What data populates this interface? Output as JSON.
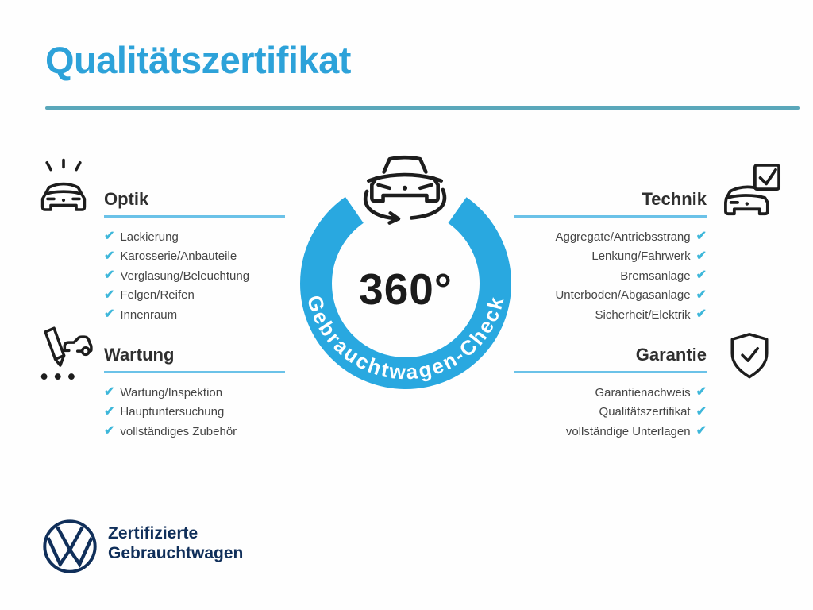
{
  "page": {
    "title": "Qualitätszertifikat"
  },
  "center": {
    "degrees": "360°",
    "ring_text": "Gebrauchtwagen-Check",
    "icon": "rotating-car-icon"
  },
  "sections": {
    "optik": {
      "label": "Optik",
      "icon": "shining-car-icon",
      "items": [
        "Lackierung",
        "Karosserie/Anbauteile",
        "Verglasung/Beleuchtung",
        "Felgen/Reifen",
        "Innenraum"
      ]
    },
    "wartung": {
      "label": "Wartung",
      "icon": "service-note-car-icon",
      "items": [
        "Wartung/Inspektion",
        "Hauptuntersuchung",
        "vollständiges Zubehör"
      ]
    },
    "technik": {
      "label": "Technik",
      "icon": "car-checkbox-icon",
      "items": [
        "Aggregate/Antriebsstrang",
        "Lenkung/Fahrwerk",
        "Bremsanlage",
        "Unterboden/Abgasanlage",
        "Sicherheit/Elektrik"
      ]
    },
    "garantie": {
      "label": "Garantie",
      "icon": "shield-check-icon",
      "items": [
        "Garantienachweis",
        "Qualitätszertifikat",
        "vollständige Unterlagen"
      ]
    }
  },
  "footer": {
    "logo": "vw-logo",
    "brand_line1": "Zertifizierte",
    "brand_line2": "Gebrauchtwagen"
  },
  "check_glyph": "✔",
  "colors": {
    "title_blue": "#2da2d9",
    "ring_blue": "#29a8e0",
    "check_cyan": "#3eb7da",
    "underline_blue": "#6bc2e8",
    "divider_teal": "#5aa7ba",
    "vw_navy": "#102f5a",
    "icon_ink": "#1d1d1d"
  }
}
